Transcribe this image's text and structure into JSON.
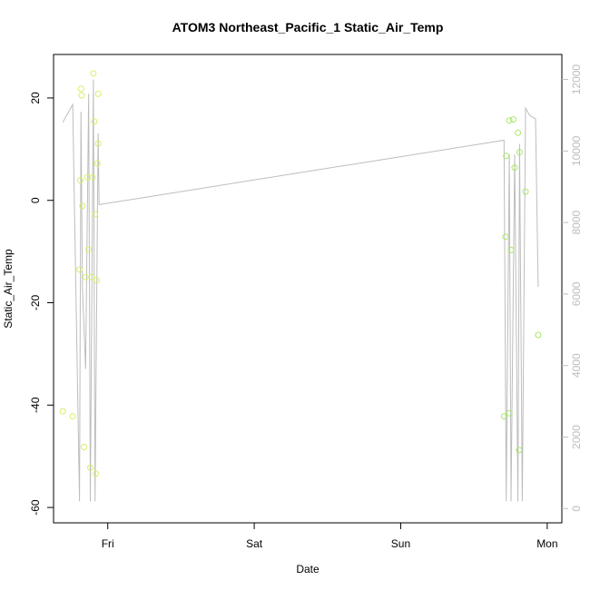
{
  "chart_data": {
    "type": "scatter",
    "title": "ATOM3 Northeast_Pacific_1 Static_Air_Temp",
    "xlabel": "Date",
    "ylabel": "Static_Air_Temp",
    "x_ticks": [
      {
        "label": "Fri",
        "t": 1.0
      },
      {
        "label": "Sat",
        "t": 2.0
      },
      {
        "label": "Sun",
        "t": 3.0
      },
      {
        "label": "Mon",
        "t": 4.0
      }
    ],
    "xlim": [
      0.63,
      4.1
    ],
    "ylim": [
      -63,
      28.5
    ],
    "y_ticks": [
      -60,
      -40,
      -20,
      0,
      20
    ],
    "y2lim": [
      -400,
      12700
    ],
    "y2_ticks": [
      0,
      2000,
      4000,
      6000,
      8000,
      10000,
      12000
    ],
    "grid": false,
    "colors": {
      "points": "#d4f06a",
      "points_late": "#a8e86a",
      "line": "#bdbdbd",
      "right_axis": "#bdbdbd"
    },
    "series": [
      {
        "axis": "left",
        "style": "points",
        "x": [
          0.693,
          0.761,
          0.807,
          0.812,
          0.817,
          0.822,
          0.827,
          0.838,
          0.849,
          0.859,
          0.87,
          0.881,
          0.891,
          0.897,
          0.902,
          0.908,
          0.913,
          0.919,
          0.924,
          0.929,
          0.934,
          0.935,
          3.705,
          3.715,
          3.72,
          3.741,
          3.742,
          3.753,
          3.768,
          3.778,
          3.8,
          3.808,
          3.811,
          3.852,
          3.938
        ],
        "y": [
          -41.2,
          -42.2,
          -13.5,
          3.9,
          21.8,
          20.5,
          -1.1,
          -48.2,
          -15.0,
          4.5,
          -9.6,
          -52.2,
          -15.0,
          4.5,
          24.8,
          15.4,
          -2.7,
          -53.4,
          -15.6,
          7.2,
          11.1,
          20.8,
          -42.2,
          -7.1,
          8.7,
          15.6,
          -41.6,
          -9.7,
          15.8,
          6.4,
          13.2,
          -48.8,
          9.4,
          1.7,
          -26.3
        ],
        "late_from_index": 22
      },
      {
        "axis": "right",
        "style": "line",
        "x": [
          0.693,
          0.761,
          0.807,
          0.817,
          0.827,
          0.849,
          0.87,
          0.881,
          0.902,
          0.913,
          0.934,
          0.941,
          3.705,
          3.72,
          3.741,
          3.753,
          3.778,
          3.8,
          3.811,
          3.83,
          3.852,
          3.88,
          3.92,
          3.938
        ],
        "y": [
          10800,
          11300,
          200,
          11100,
          6200,
          3900,
          11600,
          200,
          12000,
          200,
          10500,
          8500,
          10300,
          200,
          9900,
          200,
          9900,
          200,
          10200,
          200,
          11200,
          11000,
          10900,
          6200
        ]
      }
    ]
  }
}
